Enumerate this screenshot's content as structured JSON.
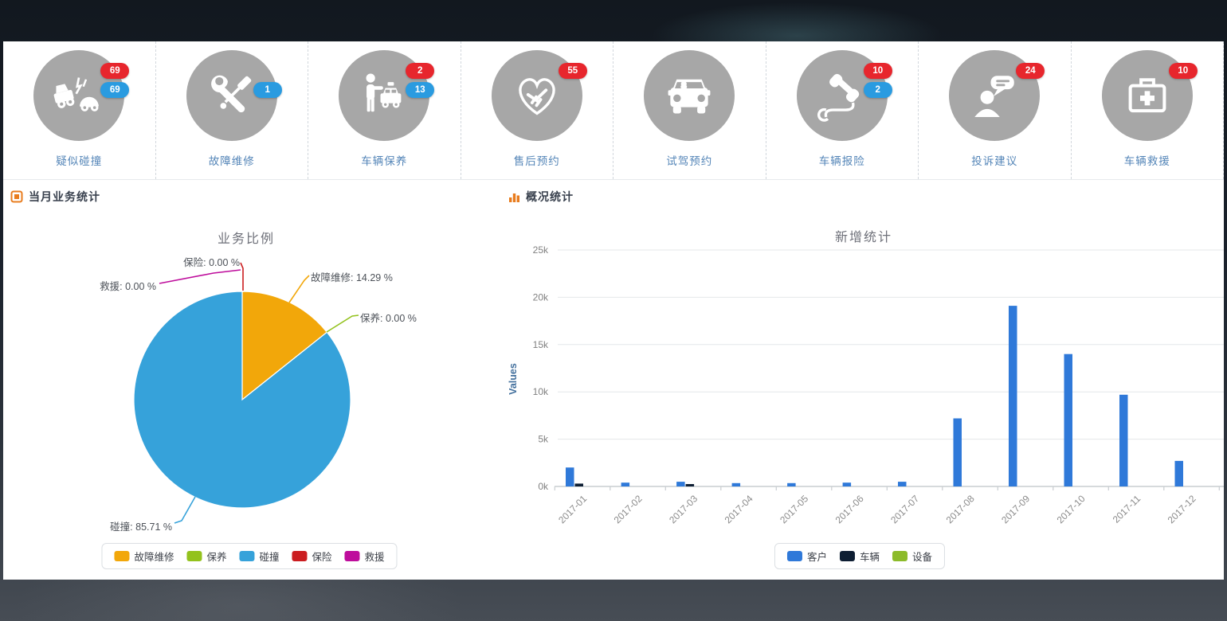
{
  "sections": {
    "left_title": "当月业务统计",
    "right_title": "概况统计"
  },
  "services": [
    {
      "label": "疑似碰撞",
      "icon": "car-crash-icon",
      "badges": {
        "red": "69",
        "blue": "69"
      }
    },
    {
      "label": "故障维修",
      "icon": "repair-tools-icon",
      "badges": {
        "blue": "1"
      }
    },
    {
      "label": "车辆保养",
      "icon": "person-taxi-icon",
      "badges": {
        "red": "2",
        "blue": "13"
      }
    },
    {
      "label": "售后预约",
      "icon": "handshake-icon",
      "badges": {
        "red": "55"
      }
    },
    {
      "label": "试驾预约",
      "icon": "car-front-icon",
      "badges": {}
    },
    {
      "label": "车辆报险",
      "icon": "phone-cord-icon",
      "badges": {
        "red": "10",
        "blue": "2"
      }
    },
    {
      "label": "投诉建议",
      "icon": "feedback-icon",
      "badges": {
        "red": "24"
      }
    },
    {
      "label": "车辆救援",
      "icon": "first-aid-icon",
      "badges": {
        "red": "10"
      }
    }
  ],
  "chart_data": [
    {
      "type": "pie",
      "title": "业务比例",
      "legend_position": "bottom",
      "slices": [
        {
          "label": "故障维修",
          "value": 14.29,
          "color": "#F2A70A",
          "display": "故障维修: 14.29 %"
        },
        {
          "label": "保养",
          "value": 0,
          "color": "#93C21D",
          "display": "保养: 0.00 %"
        },
        {
          "label": "碰撞",
          "value": 85.71,
          "color": "#36A2DA",
          "display": "碰撞: 85.71 %"
        },
        {
          "label": "保险",
          "value": 0,
          "color": "#CB1D20",
          "display": "保险: 0.00 %"
        },
        {
          "label": "救援",
          "value": 0,
          "color": "#BE0D9C",
          "display": "救援: 0.00 %"
        }
      ]
    },
    {
      "type": "bar",
      "title": "新增统计",
      "ylabel": "Values",
      "ylim": [
        0,
        25000
      ],
      "yticks": [
        "0k",
        "5k",
        "10k",
        "15k",
        "20k",
        "25k"
      ],
      "grid": true,
      "legend_position": "bottom",
      "categories": [
        "2017-01",
        "2017-02",
        "2017-03",
        "2017-04",
        "2017-05",
        "2017-06",
        "2017-07",
        "2017-08",
        "2017-09",
        "2017-10",
        "2017-11",
        "2017-12"
      ],
      "series": [
        {
          "name": "客户",
          "color": "#2F79D9",
          "values": [
            2000,
            400,
            500,
            350,
            350,
            400,
            500,
            7200,
            19100,
            14000,
            9700,
            2700
          ]
        },
        {
          "name": "车辆",
          "color": "#0E1E33",
          "values": [
            300,
            0,
            250,
            0,
            0,
            0,
            0,
            0,
            0,
            0,
            0,
            0
          ]
        },
        {
          "name": "设备",
          "color": "#8CBB2A",
          "values": [
            0,
            0,
            0,
            0,
            0,
            0,
            0,
            0,
            0,
            0,
            0,
            0
          ]
        }
      ]
    }
  ]
}
